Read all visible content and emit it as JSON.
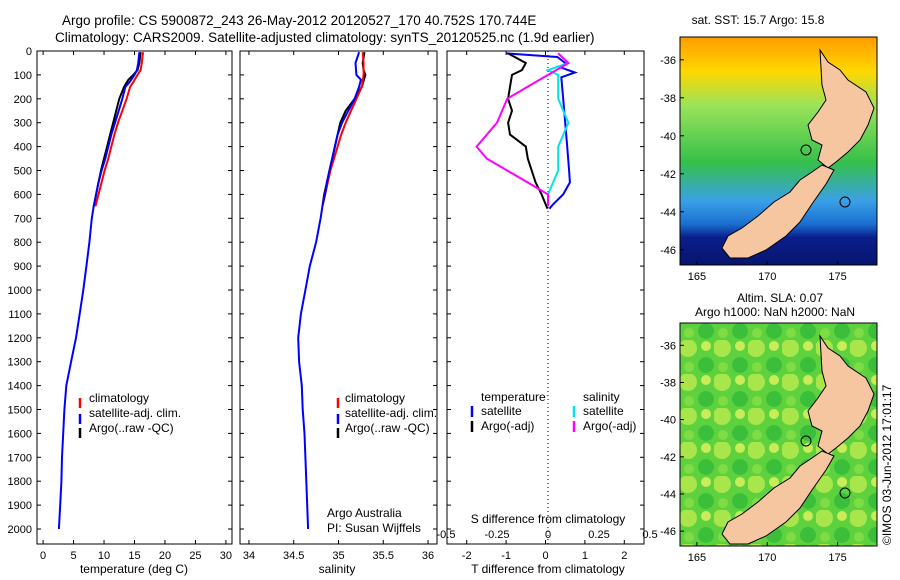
{
  "header": {
    "line1": "Argo profile: CS 5900872_243 26-May-2012 20120527_170 40.752S 170.744E",
    "line2": "Climatology: CARS2009. Satellite-adjusted climatology: synTS_20120525.nc (1.9d earlier)"
  },
  "colors": {
    "climatology": "#ff0000",
    "satellite": "#0000ff",
    "argo": "#000000",
    "sat_sal": "#00e5e5",
    "argo_sal_adj": "#ff00ff",
    "land": "#f5c6a0"
  },
  "chart_data": [
    {
      "type": "line",
      "id": "temperature",
      "xlabel": "temperature (deg C)",
      "xlim": [
        -1,
        31
      ],
      "xticks": [
        0,
        5,
        10,
        15,
        20,
        25,
        30
      ],
      "ylim": [
        0,
        2100
      ],
      "yticks": [
        0,
        100,
        200,
        300,
        400,
        500,
        600,
        700,
        800,
        900,
        1000,
        1100,
        1200,
        1300,
        1400,
        1500,
        1600,
        1700,
        1800,
        1900,
        2000
      ],
      "legend": [
        "climatology",
        "satellite-adj. clim.",
        "Argo(..raw -QC)"
      ],
      "series": [
        {
          "name": "Argo(..raw -QC)",
          "color": "#000000",
          "points": [
            [
              16,
              5
            ],
            [
              15.8,
              50
            ],
            [
              15.5,
              80
            ],
            [
              14.8,
              100
            ],
            [
              14,
              120
            ],
            [
              13.3,
              150
            ],
            [
              12.5,
              200
            ],
            [
              12,
              250
            ],
            [
              11.5,
              300
            ],
            [
              11,
              350
            ],
            [
              10.5,
              400
            ],
            [
              10,
              450
            ],
            [
              9.5,
              500
            ],
            [
              9.1,
              550
            ],
            [
              8.7,
              600
            ],
            [
              8.3,
              650
            ]
          ]
        },
        {
          "name": "climatology",
          "color": "#ff0000",
          "points": [
            [
              16.4,
              5
            ],
            [
              16.2,
              50
            ],
            [
              16,
              80
            ],
            [
              15.5,
              100
            ],
            [
              14.8,
              130
            ],
            [
              14.3,
              150
            ],
            [
              13.7,
              200
            ],
            [
              13,
              250
            ],
            [
              12.3,
              300
            ],
            [
              11.7,
              350
            ],
            [
              11.2,
              400
            ],
            [
              10.7,
              450
            ],
            [
              10.1,
              500
            ],
            [
              9.6,
              550
            ],
            [
              9.1,
              600
            ],
            [
              8.6,
              650
            ]
          ]
        },
        {
          "name": "satellite-adj. clim.",
          "color": "#0000ff",
          "points": [
            [
              15.8,
              5
            ],
            [
              15.6,
              50
            ],
            [
              15.4,
              80
            ],
            [
              15,
              100
            ],
            [
              14.2,
              130
            ],
            [
              13.5,
              150
            ],
            [
              13,
              200
            ],
            [
              12.4,
              250
            ],
            [
              11.8,
              300
            ],
            [
              11.2,
              350
            ],
            [
              10.7,
              400
            ],
            [
              10.2,
              450
            ],
            [
              9.6,
              500
            ],
            [
              9.1,
              550
            ],
            [
              8.7,
              600
            ],
            [
              8.3,
              650
            ],
            [
              8,
              700
            ],
            [
              7.6,
              800
            ],
            [
              7.1,
              900
            ],
            [
              6.6,
              1000
            ],
            [
              6,
              1100
            ],
            [
              5.4,
              1200
            ],
            [
              4.6,
              1300
            ],
            [
              3.8,
              1400
            ],
            [
              3.5,
              1500
            ],
            [
              3.3,
              1600
            ],
            [
              3.1,
              1700
            ],
            [
              3,
              1800
            ],
            [
              2.8,
              1900
            ],
            [
              2.6,
              2000
            ]
          ]
        }
      ]
    },
    {
      "type": "line",
      "id": "salinity",
      "xlabel": "salinity",
      "xlim": [
        33.9,
        36.1
      ],
      "xticks": [
        34,
        34.5,
        35,
        35.5,
        36
      ],
      "xticklabels": [
        "34",
        "34.5",
        "35",
        "35.5",
        "36"
      ],
      "ylim": [
        0,
        2100
      ],
      "legend": [
        "climatology",
        "satellite-adj. clim.",
        "Argo(..raw -QC)"
      ],
      "annotation": [
        "Argo Australia",
        "PI: Susan Wijffels"
      ],
      "series": [
        {
          "name": "Argo(..raw -QC)",
          "color": "#000000",
          "points": [
            [
              35.29,
              5
            ],
            [
              35.27,
              50
            ],
            [
              35.28,
              80
            ],
            [
              35.3,
              100
            ],
            [
              35.26,
              150
            ],
            [
              35.18,
              200
            ],
            [
              35.08,
              250
            ],
            [
              35.02,
              300
            ],
            [
              34.99,
              350
            ],
            [
              34.96,
              400
            ],
            [
              34.93,
              450
            ],
            [
              34.9,
              500
            ],
            [
              34.87,
              550
            ],
            [
              34.84,
              600
            ],
            [
              34.82,
              650
            ]
          ]
        },
        {
          "name": "climatology",
          "color": "#ff0000",
          "points": [
            [
              35.27,
              5
            ],
            [
              35.28,
              50
            ],
            [
              35.28,
              100
            ],
            [
              35.26,
              150
            ],
            [
              35.2,
              200
            ],
            [
              35.14,
              250
            ],
            [
              35.08,
              300
            ],
            [
              35.03,
              350
            ],
            [
              34.99,
              400
            ],
            [
              34.95,
              450
            ],
            [
              34.91,
              500
            ],
            [
              34.88,
              550
            ],
            [
              34.85,
              600
            ],
            [
              34.82,
              650
            ]
          ]
        },
        {
          "name": "satellite-adj. clim.",
          "color": "#0000ff",
          "points": [
            [
              35.23,
              5
            ],
            [
              35.19,
              50
            ],
            [
              35.2,
              100
            ],
            [
              35.25,
              120
            ],
            [
              35.23,
              150
            ],
            [
              35.18,
              200
            ],
            [
              35.11,
              250
            ],
            [
              35.04,
              300
            ],
            [
              34.99,
              350
            ],
            [
              34.96,
              400
            ],
            [
              34.93,
              450
            ],
            [
              34.9,
              500
            ],
            [
              34.87,
              550
            ],
            [
              34.85,
              600
            ],
            [
              34.82,
              650
            ],
            [
              34.8,
              700
            ],
            [
              34.75,
              800
            ],
            [
              34.68,
              900
            ],
            [
              34.63,
              1000
            ],
            [
              34.58,
              1100
            ],
            [
              34.55,
              1200
            ],
            [
              34.56,
              1300
            ],
            [
              34.59,
              1400
            ],
            [
              34.6,
              1500
            ],
            [
              34.62,
              1600
            ],
            [
              34.63,
              1700
            ],
            [
              34.64,
              1800
            ],
            [
              34.65,
              1900
            ],
            [
              34.66,
              2000
            ]
          ]
        }
      ]
    },
    {
      "type": "line",
      "id": "difference",
      "xlabel": "T difference from climatology",
      "x2label": "S difference from climatology",
      "xlim": [
        -2.5,
        2.5
      ],
      "xticks": [
        -2,
        -1,
        0,
        1,
        2
      ],
      "x2ticks": [
        -0.5,
        -0.25,
        0,
        0.25,
        0.5
      ],
      "x2ticklabels": [
        "-0.5",
        "-0.25",
        "0",
        "0.25",
        "0.5"
      ],
      "ylim": [
        0,
        2100
      ],
      "legend_temperature": {
        "title": "temperature",
        "items": [
          "satellite",
          "Argo(-adj)"
        ]
      },
      "legend_salinity": {
        "title": "salinity",
        "items": [
          "satellite",
          "Argo(-adj)"
        ]
      },
      "series": [
        {
          "name": "temperature satellite",
          "color": "#0000ff",
          "points": [
            [
              -1,
              10
            ],
            [
              0.3,
              25
            ],
            [
              0.5,
              50
            ],
            [
              0.4,
              70
            ],
            [
              0.75,
              90
            ],
            [
              0.4,
              110
            ],
            [
              0.45,
              200
            ],
            [
              0.5,
              300
            ],
            [
              0.55,
              400
            ],
            [
              0.6,
              500
            ],
            [
              0.62,
              550
            ],
            [
              0.45,
              600
            ],
            [
              0.2,
              640
            ],
            [
              0.1,
              660
            ]
          ]
        },
        {
          "name": "temperature Argo(-adj)",
          "color": "#000000",
          "points": [
            [
              -0.95,
              10
            ],
            [
              -0.5,
              50
            ],
            [
              -0.6,
              80
            ],
            [
              -0.85,
              100
            ],
            [
              -0.9,
              150
            ],
            [
              -0.95,
              200
            ],
            [
              -0.85,
              250
            ],
            [
              -0.95,
              300
            ],
            [
              -0.9,
              350
            ],
            [
              -0.5,
              400
            ],
            [
              -0.45,
              450
            ],
            [
              -0.35,
              500
            ],
            [
              -0.25,
              550
            ],
            [
              -0.1,
              600
            ],
            [
              0,
              640
            ],
            [
              0.05,
              660
            ]
          ]
        },
        {
          "name": "salinity satellite",
          "color": "#00e5e5",
          "points": [
            [
              0.05,
              10
            ],
            [
              0.1,
              50
            ],
            [
              0,
              80
            ],
            [
              0.05,
              100
            ],
            [
              0.05,
              200
            ],
            [
              0.1,
              300
            ],
            [
              0.05,
              400
            ],
            [
              0.05,
              500
            ],
            [
              0,
              600
            ],
            [
              0,
              650
            ]
          ]
        },
        {
          "name": "salinity Argo(-adj)",
          "color": "#ff00ff",
          "points": [
            [
              0.05,
              10
            ],
            [
              0.1,
              50
            ],
            [
              0,
              100
            ],
            [
              -0.1,
              150
            ],
            [
              -0.2,
              200
            ],
            [
              -0.25,
              300
            ],
            [
              -0.35,
              400
            ],
            [
              -0.3,
              450
            ],
            [
              -0.2,
              500
            ],
            [
              -0.1,
              550
            ],
            [
              0,
              600
            ],
            [
              0,
              650
            ]
          ]
        }
      ]
    }
  ],
  "maps": [
    {
      "id": "sst-map",
      "title": "sat. SST: 15.7 Argo: 15.8",
      "xlim": [
        163.8,
        177.8
      ],
      "ylim": [
        -46.8,
        -34.8
      ],
      "xticks": [
        165,
        170,
        175
      ],
      "yticks": [
        -36,
        -38,
        -40,
        -42,
        -44,
        -46
      ]
    },
    {
      "id": "sla-map",
      "title": "Altim. SLA: 0.07",
      "subtitle": "Argo h1000: NaN h2000: NaN",
      "xlim": [
        163.8,
        177.8
      ],
      "ylim": [
        -46.8,
        -34.8
      ],
      "xticks": [
        165,
        170,
        175
      ],
      "yticks": [
        -36,
        -38,
        -40,
        -42,
        -44,
        -46
      ]
    }
  ],
  "footer_stamp": "©IMOS 03-Jun-2012 17:01:17"
}
